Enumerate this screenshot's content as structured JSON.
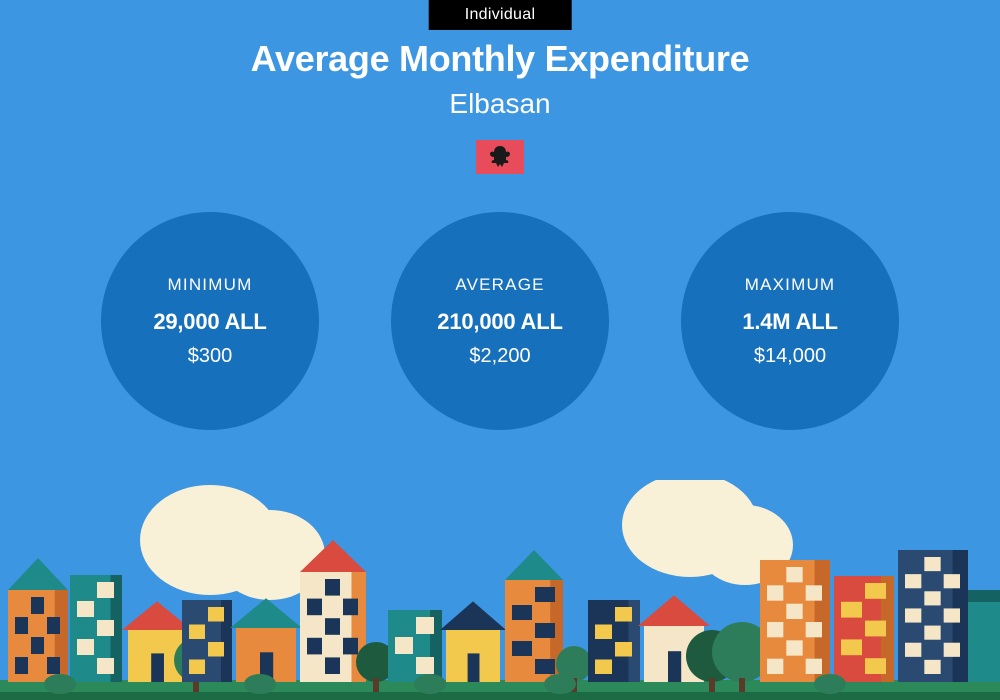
{
  "background_color": "#3c96e2",
  "tag": {
    "label": "Individual",
    "bg": "#000000",
    "color": "#ffffff"
  },
  "title": "Average Monthly Expenditure",
  "subtitle": "Elbasan",
  "flag": {
    "bg": "#e84b5a",
    "emblem": "#1a1a1a"
  },
  "circle_color": "#1670bb",
  "stats": [
    {
      "label": "MINIMUM",
      "local": "29,000 ALL",
      "usd": "$300"
    },
    {
      "label": "AVERAGE",
      "local": "210,000 ALL",
      "usd": "$2,200"
    },
    {
      "label": "MAXIMUM",
      "local": "1.4M ALL",
      "usd": "$14,000"
    }
  ],
  "cityscape": {
    "sky": "#3c96e2",
    "ground": "#2c8a5a",
    "ground_dark": "#1c6b44",
    "cloud": "#f9f0d8",
    "orange": "#e78a3e",
    "orange_d": "#c5682a",
    "teal": "#1e8a8a",
    "teal_d": "#156262",
    "navy": "#1a3558",
    "navy_l": "#2a4a72",
    "red": "#d94b3e",
    "yellow": "#f2c94c",
    "cream": "#f5e6c8",
    "tree_g": "#2e7d5a",
    "tree_d": "#1e5a3e",
    "trunk": "#5a3a28"
  }
}
